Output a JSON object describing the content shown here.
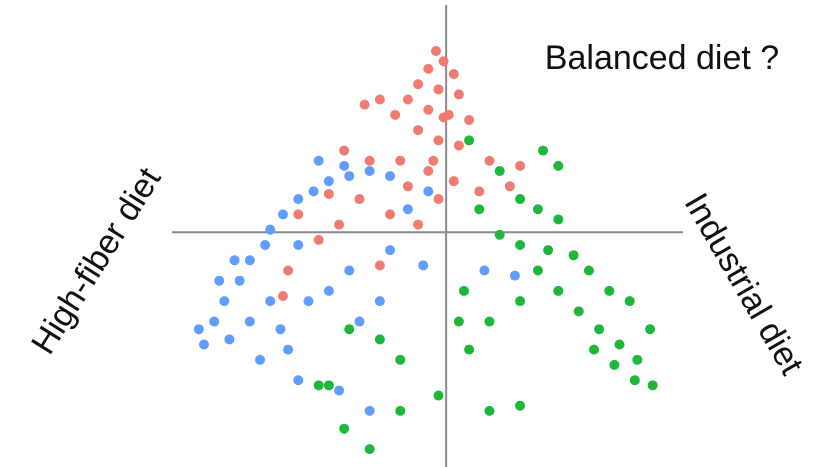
{
  "chart_data": {
    "type": "scatter",
    "annotations": [
      "Balanced diet ?",
      "High-fiber diet",
      "Industrial diet"
    ],
    "xlim": [
      -1.75,
      1.49
    ],
    "ylim": [
      -0.92,
      0.91
    ],
    "series": [
      {
        "color": "#f07b70",
        "x": [
          -0.04,
          -0.01,
          -0.07,
          0.03,
          -0.11,
          -0.03,
          0.05,
          -0.15,
          -0.07,
          0.01,
          -0.26,
          -0.32,
          -0.2,
          0.09,
          -0.11,
          -0.03,
          0.05,
          -0.4,
          -0.3,
          -0.18,
          0.17,
          0.29,
          -0.07,
          0.03,
          -0.15,
          -0.46,
          -0.34,
          -0.03,
          0.13,
          0.25,
          -0.58,
          -0.42,
          -0.22,
          -0.11,
          -0.5,
          -0.62,
          -0.26,
          -0.64,
          -0.05,
          -0.01
        ],
        "values": [
          0.71,
          0.67,
          0.64,
          0.62,
          0.58,
          0.56,
          0.54,
          0.52,
          0.48,
          0.46,
          0.52,
          0.5,
          0.46,
          0.44,
          0.4,
          0.36,
          0.34,
          0.32,
          0.28,
          0.28,
          0.28,
          0.26,
          0.24,
          0.2,
          0.18,
          0.15,
          0.13,
          0.13,
          0.16,
          0.18,
          0.07,
          0.03,
          0.07,
          0.03,
          -0.03,
          -0.15,
          -0.13,
          -0.25,
          0.28,
          0.45
        ]
      },
      {
        "color": "#619cff",
        "x": [
          -0.95,
          -0.91,
          -0.87,
          -0.97,
          -0.81,
          -0.77,
          -0.71,
          -0.69,
          -0.64,
          -0.58,
          -0.52,
          -0.46,
          -0.38,
          -0.3,
          -0.22,
          -0.5,
          -0.4,
          -0.85,
          -0.77,
          -0.69,
          -0.62,
          -0.58,
          -0.73,
          -0.65,
          -0.54,
          -0.46,
          -0.38,
          -0.34,
          -0.26,
          -0.42,
          -0.3,
          -0.89,
          -0.83,
          -0.58,
          -0.15,
          -0.07,
          -0.09,
          0.15,
          0.27,
          -0.22
        ],
        "values": [
          -0.44,
          -0.35,
          -0.27,
          -0.38,
          -0.19,
          -0.11,
          -0.05,
          0.01,
          0.07,
          0.13,
          0.16,
          0.2,
          0.22,
          0.24,
          0.22,
          0.28,
          0.26,
          -0.42,
          -0.35,
          -0.27,
          -0.46,
          -0.58,
          -0.5,
          -0.38,
          -0.27,
          -0.23,
          -0.15,
          -0.35,
          -0.27,
          -0.62,
          -0.7,
          -0.19,
          -0.11,
          -0.05,
          0.09,
          0.16,
          -0.13,
          -0.15,
          -0.17,
          -0.07
        ]
      },
      {
        "color": "#1fb73b",
        "x": [
          0.38,
          0.44,
          0.21,
          0.29,
          0.36,
          0.44,
          0.13,
          0.21,
          0.29,
          0.4,
          0.5,
          0.56,
          0.64,
          0.36,
          0.44,
          0.52,
          0.6,
          0.68,
          0.75,
          0.81,
          0.74,
          0.66,
          0.58,
          0.72,
          0.8,
          0.29,
          0.17,
          0.07,
          0.05,
          0.09,
          -0.03,
          0.17,
          0.29,
          -0.18,
          -0.38,
          -0.26,
          -0.46,
          -0.4,
          -0.3,
          -0.18,
          -0.5,
          0.09
        ],
        "values": [
          0.32,
          0.26,
          0.24,
          0.13,
          0.09,
          0.05,
          0.09,
          -0.01,
          -0.05,
          -0.07,
          -0.09,
          -0.15,
          -0.23,
          -0.15,
          -0.23,
          -0.31,
          -0.38,
          -0.44,
          -0.5,
          -0.6,
          -0.58,
          -0.52,
          -0.46,
          -0.27,
          -0.38,
          -0.27,
          -0.35,
          -0.23,
          -0.35,
          -0.46,
          -0.64,
          -0.7,
          -0.68,
          -0.5,
          -0.38,
          -0.42,
          -0.6,
          -0.77,
          -0.85,
          -0.7,
          -0.6,
          0.36
        ]
      }
    ]
  }
}
